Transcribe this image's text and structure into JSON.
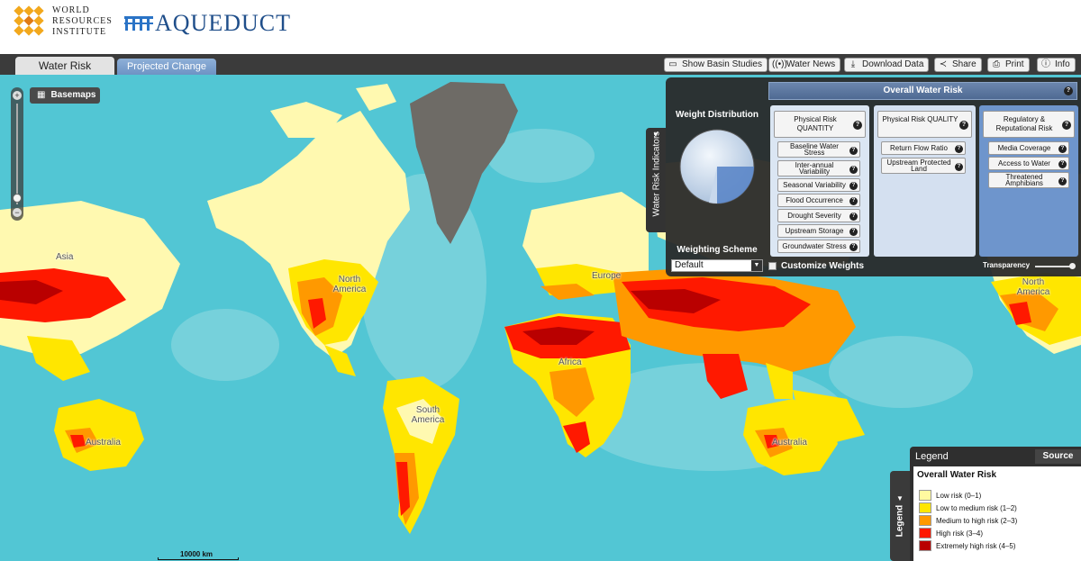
{
  "header": {
    "org_name_line1": "WORLD",
    "org_name_line2": "RESOURCES",
    "org_name_line3": "INSTITUTE",
    "product_name": "AQUEDUCT"
  },
  "tabs": [
    {
      "label": "Water Risk",
      "active": true
    },
    {
      "label": "Projected Change",
      "active": false
    }
  ],
  "toolbar": [
    {
      "label": "Show Basin Studies",
      "icon": "window-icon"
    },
    {
      "label": "Water News",
      "icon": "broadcast-icon"
    },
    {
      "label": "Download Data",
      "icon": "download-icon"
    },
    {
      "label": "Share",
      "icon": "share-icon"
    },
    {
      "label": "Print",
      "icon": "printer-icon"
    },
    {
      "label": "Info",
      "icon": "info-icon"
    }
  ],
  "map": {
    "basemaps_label": "Basemaps",
    "scale_label": "10000 km",
    "labels": [
      "Asia",
      "North America",
      "Europe",
      "Africa",
      "South America",
      "Australia",
      "Asia",
      "North America",
      "Australia"
    ]
  },
  "indicators_panel": {
    "tab_label": "Water Risk Indicators",
    "header": "Overall Water Risk",
    "weight_distribution_label": "Weight Distribution",
    "weighting_scheme_label": "Weighting Scheme",
    "weighting_scheme_value": "Default",
    "customize_weights_label": "Customize Weights",
    "transparency_label": "Transparency",
    "transparency_value": 0.95,
    "columns": [
      {
        "title": "Physical Risk QUANTITY",
        "items": [
          "Baseline Water Stress",
          "Inter-annual Variability",
          "Seasonal Variability",
          "Flood Occurrence",
          "Drought Severity",
          "Upstream Storage",
          "Groundwater Stress"
        ]
      },
      {
        "title": "Physical Risk QUALITY",
        "items": [
          "Return Flow Ratio",
          "Upstream Protected Land"
        ]
      },
      {
        "title": "Regulatory & Reputational Risk",
        "items": [
          "Media Coverage",
          "Access to Water",
          "Threatened Amphibians"
        ]
      }
    ]
  },
  "legend": {
    "title": "Legend",
    "source_label": "Source",
    "tab_label": "Legend",
    "heading": "Overall Water Risk",
    "items": [
      {
        "label": "Low risk (0–1)",
        "color": "#fffaa0"
      },
      {
        "label": "Low to medium risk (1–2)",
        "color": "#ffe600"
      },
      {
        "label": "Medium to high risk (2–3)",
        "color": "#ff9900"
      },
      {
        "label": "High risk (3–4)",
        "color": "#ff1900"
      },
      {
        "label": "Extremely high risk (4–5)",
        "color": "#b90000"
      }
    ]
  },
  "colors": {
    "ocean": "#52c6d4",
    "ocean_shallow": "#8ad8df",
    "no_data": "#6e6b66",
    "panel_bg": "#2a2a2a",
    "tab_active": "#e3e3e3",
    "tab_inactive": "#7a9dcc"
  }
}
